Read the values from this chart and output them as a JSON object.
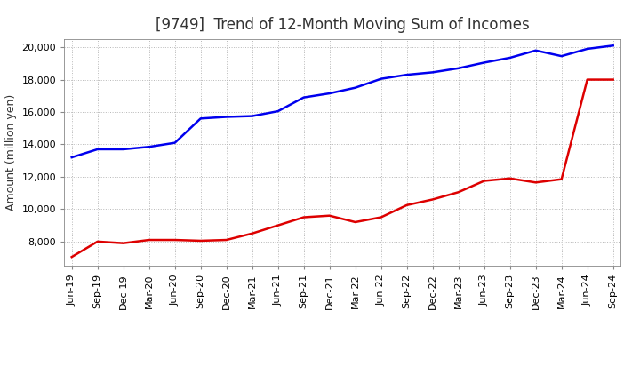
{
  "title": "[9749]  Trend of 12-Month Moving Sum of Incomes",
  "ylabel": "Amount (million yen)",
  "background_color": "#ffffff",
  "grid_color": "#b0b0b0",
  "x_labels": [
    "Jun-19",
    "Sep-19",
    "Dec-19",
    "Mar-20",
    "Jun-20",
    "Sep-20",
    "Dec-20",
    "Mar-21",
    "Jun-21",
    "Sep-21",
    "Dec-21",
    "Mar-22",
    "Jun-22",
    "Sep-22",
    "Dec-22",
    "Mar-23",
    "Jun-23",
    "Sep-23",
    "Dec-23",
    "Mar-24",
    "Jun-24",
    "Sep-24"
  ],
  "ordinary_income": [
    13200,
    13700,
    13700,
    13850,
    14100,
    15600,
    15700,
    15750,
    16050,
    16900,
    17150,
    17500,
    18050,
    18300,
    18450,
    18700,
    19050,
    19350,
    19800,
    19450,
    19900,
    20100
  ],
  "net_income": [
    7050,
    8000,
    7900,
    8100,
    8100,
    8050,
    8100,
    8500,
    9000,
    9500,
    9600,
    9200,
    9500,
    10250,
    10600,
    11050,
    11750,
    11900,
    11650,
    11850,
    18000,
    18000
  ],
  "ordinary_color": "#0000ee",
  "net_color": "#dd0000",
  "ylim_min": 6500,
  "ylim_max": 20500,
  "yticks": [
    8000,
    10000,
    12000,
    14000,
    16000,
    18000,
    20000
  ],
  "line_width": 1.8,
  "title_color": "#333333"
}
